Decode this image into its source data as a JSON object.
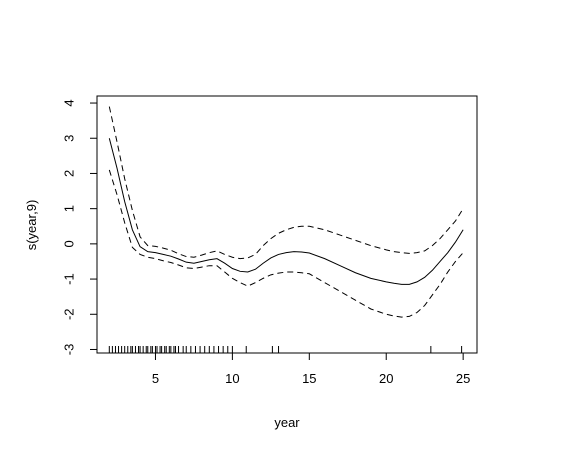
{
  "chart_data": {
    "type": "line",
    "xlabel": "year",
    "ylabel": "s(year,9)",
    "xlim": [
      1.2,
      25.9
    ],
    "ylim": [
      -3.1,
      4.2
    ],
    "xticks": [
      5,
      10,
      15,
      20,
      25
    ],
    "yticks": [
      -3,
      -2,
      -1,
      0,
      1,
      2,
      3,
      4
    ],
    "ytick_labels": [
      "-3",
      "-2",
      "-1",
      "0",
      "1",
      "2",
      "3",
      "4"
    ],
    "grid": false,
    "series": [
      {
        "style": "solid",
        "x": [
          2,
          2.5,
          3,
          3.5,
          4,
          4.5,
          5,
          5.5,
          6,
          6.5,
          7,
          7.5,
          8,
          8.5,
          9,
          9.5,
          10,
          10.5,
          11,
          11.5,
          12,
          12.5,
          13,
          13.5,
          14,
          14.5,
          15,
          16,
          17,
          18,
          19,
          20,
          20.5,
          21,
          21.5,
          22,
          22.5,
          23,
          23.5,
          24,
          24.5,
          25
        ],
        "y": [
          3.0,
          2.15,
          1.2,
          0.4,
          -0.08,
          -0.22,
          -0.25,
          -0.3,
          -0.35,
          -0.43,
          -0.52,
          -0.55,
          -0.5,
          -0.45,
          -0.42,
          -0.55,
          -0.7,
          -0.78,
          -0.8,
          -0.72,
          -0.55,
          -0.4,
          -0.3,
          -0.25,
          -0.22,
          -0.23,
          -0.26,
          -0.42,
          -0.62,
          -0.82,
          -0.98,
          -1.08,
          -1.12,
          -1.15,
          -1.15,
          -1.08,
          -0.95,
          -0.75,
          -0.5,
          -0.25,
          0.05,
          0.4
        ]
      },
      {
        "style": "dashed",
        "x": [
          2,
          2.5,
          3,
          3.5,
          4,
          4.5,
          5,
          5.5,
          6,
          6.5,
          7,
          7.5,
          8,
          8.5,
          9,
          9.5,
          10,
          10.5,
          11,
          11.5,
          12,
          12.5,
          13,
          13.5,
          14,
          14.5,
          15,
          16,
          17,
          18,
          19,
          20,
          20.5,
          21,
          21.5,
          22,
          22.5,
          23,
          23.5,
          24,
          24.5,
          25
        ],
        "y": [
          3.9,
          2.9,
          1.85,
          0.95,
          0.2,
          -0.05,
          -0.07,
          -0.12,
          -0.18,
          -0.28,
          -0.36,
          -0.38,
          -0.32,
          -0.25,
          -0.2,
          -0.3,
          -0.38,
          -0.42,
          -0.4,
          -0.3,
          -0.05,
          0.15,
          0.3,
          0.4,
          0.47,
          0.5,
          0.5,
          0.4,
          0.25,
          0.1,
          -0.05,
          -0.17,
          -0.22,
          -0.25,
          -0.27,
          -0.25,
          -0.2,
          -0.05,
          0.15,
          0.4,
          0.65,
          1.0
        ]
      },
      {
        "style": "dashed",
        "x": [
          2,
          2.5,
          3,
          3.5,
          4,
          4.5,
          5,
          5.5,
          6,
          6.5,
          7,
          7.5,
          8,
          8.5,
          9,
          9.5,
          10,
          10.5,
          11,
          11.5,
          12,
          12.5,
          13,
          13.5,
          14,
          14.5,
          15,
          16,
          17,
          18,
          19,
          20,
          20.5,
          21,
          21.5,
          22,
          22.5,
          23,
          23.5,
          24,
          24.5,
          25
        ],
        "y": [
          2.1,
          1.4,
          0.6,
          -0.1,
          -0.3,
          -0.38,
          -0.42,
          -0.48,
          -0.53,
          -0.6,
          -0.68,
          -0.7,
          -0.66,
          -0.62,
          -0.62,
          -0.8,
          -0.98,
          -1.1,
          -1.2,
          -1.1,
          -0.98,
          -0.88,
          -0.83,
          -0.8,
          -0.8,
          -0.82,
          -0.85,
          -1.1,
          -1.35,
          -1.6,
          -1.85,
          -2.0,
          -2.05,
          -2.08,
          -2.06,
          -1.95,
          -1.75,
          -1.45,
          -1.15,
          -0.8,
          -0.5,
          -0.25
        ]
      }
    ],
    "rug": [
      2.0,
      2.2,
      2.4,
      2.6,
      2.8,
      3.0,
      3.2,
      3.4,
      3.5,
      3.7,
      3.9,
      4.0,
      4.2,
      4.4,
      4.5,
      4.7,
      4.8,
      5.0,
      5.1,
      5.3,
      5.4,
      5.6,
      5.7,
      5.9,
      6.0,
      6.2,
      6.3,
      6.5,
      6.8,
      7.0,
      7.3,
      7.6,
      7.9,
      8.2,
      8.5,
      8.8,
      9.1,
      9.4,
      9.7,
      10.0,
      10.9,
      12.6,
      13.0,
      22.9,
      24.9
    ]
  }
}
